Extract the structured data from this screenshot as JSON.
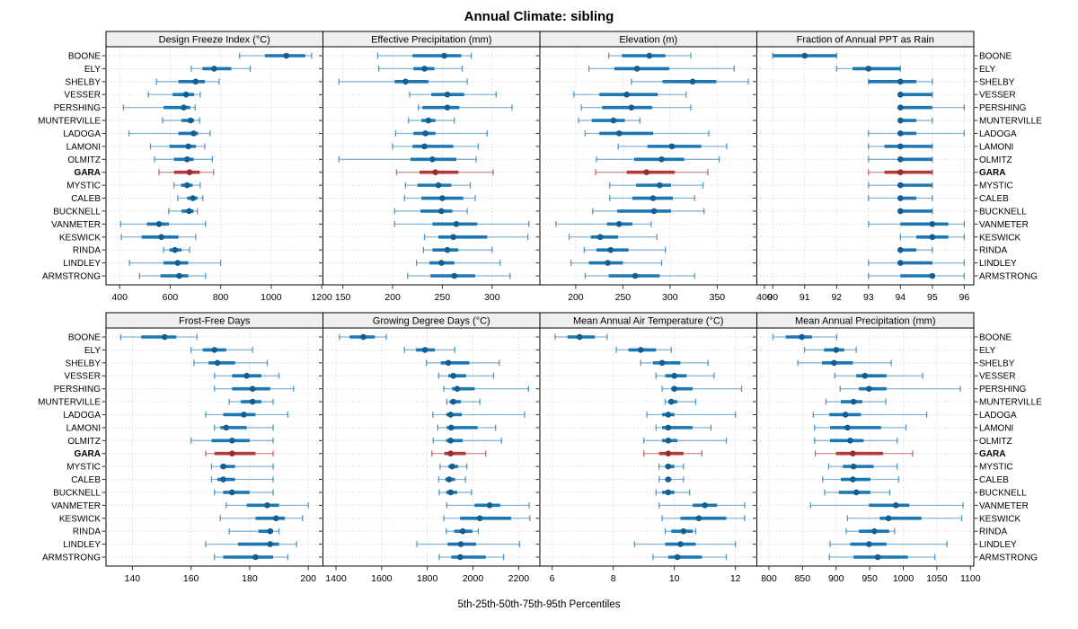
{
  "title": "Annual Climate: sibling",
  "caption": "5th-25th-50th-75th-95th Percentiles",
  "chart_data": {
    "type": "trellis-dotplot-percentiles",
    "percentiles": [
      5,
      25,
      50,
      75,
      95
    ],
    "legend_position": "none",
    "grid": "dotted",
    "stations": [
      "BOONE",
      "ELY",
      "SHELBY",
      "VESSER",
      "PERSHING",
      "MUNTERVILLE",
      "LADOGA",
      "LAMONI",
      "OLMITZ",
      "GARA",
      "MYSTIC",
      "CALEB",
      "BUCKNELL",
      "VANMETER",
      "KESWICK",
      "RINDA",
      "LINDLEY",
      "ARMSTRONG"
    ],
    "highlight_station": "GARA",
    "colors": {
      "series": "#1c78b5",
      "series_dot": "#115e93",
      "highlight": "#b5383c",
      "highlight_dot": "#992b2f",
      "gridline": "#c9c9c9",
      "strip_bg": "#efefef",
      "panel_border": "#000000",
      "text": "#000000",
      "background": "#ffffff"
    },
    "panels": [
      {
        "title": "Design Freeze Index (°C)",
        "xlim": [
          346,
          1205
        ],
        "ticks": [
          400,
          600,
          800,
          1000,
          1200
        ],
        "values": [
          [
            875,
            975,
            1060,
            1135,
            1160
          ],
          [
            684,
            728,
            774,
            842,
            917
          ],
          [
            546,
            633,
            701,
            738,
            794
          ],
          [
            514,
            610,
            663,
            695,
            719
          ],
          [
            415,
            574,
            654,
            679,
            699
          ],
          [
            570,
            645,
            681,
            695,
            717
          ],
          [
            437,
            633,
            693,
            711,
            758
          ],
          [
            522,
            597,
            672,
            702,
            737
          ],
          [
            538,
            615,
            667,
            693,
            767
          ],
          [
            556,
            615,
            677,
            717,
            772
          ],
          [
            615,
            643,
            667,
            689,
            719
          ],
          [
            630,
            667,
            690,
            708,
            729
          ],
          [
            594,
            645,
            675,
            693,
            708
          ],
          [
            404,
            508,
            556,
            595,
            740
          ],
          [
            407,
            487,
            565,
            633,
            701
          ],
          [
            574,
            597,
            619,
            645,
            677
          ],
          [
            439,
            574,
            630,
            672,
            800
          ],
          [
            479,
            562,
            636,
            672,
            740
          ]
        ]
      },
      {
        "title": "Effective Precipitation (mm)",
        "xlim": [
          130,
          348
        ],
        "ticks": [
          150,
          200,
          250,
          300
        ],
        "values": [
          [
            185,
            220,
            252,
            269,
            279
          ],
          [
            186,
            221,
            232,
            242,
            270
          ],
          [
            146,
            202,
            213,
            236,
            275
          ],
          [
            217,
            239,
            255,
            272,
            304
          ],
          [
            226,
            230,
            255,
            267,
            320
          ],
          [
            216,
            229,
            236,
            243,
            262
          ],
          [
            203,
            221,
            233,
            243,
            295
          ],
          [
            200,
            220,
            232,
            261,
            286
          ],
          [
            146,
            218,
            240,
            264,
            284
          ],
          [
            204,
            227,
            243,
            266,
            301
          ],
          [
            213,
            225,
            246,
            259,
            278
          ],
          [
            212,
            229,
            250,
            271,
            283
          ],
          [
            202,
            228,
            249,
            260,
            275
          ],
          [
            202,
            240,
            264,
            285,
            337
          ],
          [
            232,
            246,
            261,
            295,
            336
          ],
          [
            231,
            240,
            255,
            266,
            300
          ],
          [
            224,
            237,
            249,
            262,
            308
          ],
          [
            215,
            238,
            262,
            283,
            318
          ]
        ]
      },
      {
        "title": "Elevation (m)",
        "xlim": [
          162,
          392
        ],
        "ticks": [
          200,
          250,
          300,
          350,
          400
        ],
        "values": [
          [
            235,
            249,
            278,
            295,
            322
          ],
          [
            214,
            241,
            265,
            299,
            368
          ],
          [
            259,
            292,
            324,
            349,
            383
          ],
          [
            198,
            225,
            254,
            287,
            317
          ],
          [
            206,
            228,
            259,
            281,
            322
          ],
          [
            203,
            217,
            240,
            252,
            268
          ],
          [
            210,
            225,
            246,
            282,
            341
          ],
          [
            245,
            276,
            302,
            333,
            360
          ],
          [
            222,
            262,
            291,
            315,
            352
          ],
          [
            221,
            254,
            275,
            305,
            340
          ],
          [
            236,
            264,
            289,
            301,
            335
          ],
          [
            236,
            260,
            282,
            303,
            326
          ],
          [
            218,
            244,
            283,
            301,
            336
          ],
          [
            179,
            233,
            246,
            260,
            280
          ],
          [
            193,
            216,
            226,
            245,
            286
          ],
          [
            209,
            222,
            237,
            256,
            295
          ],
          [
            195,
            214,
            234,
            250,
            291
          ],
          [
            210,
            235,
            263,
            289,
            326
          ]
        ]
      },
      {
        "title": "Fraction of Annual PPT as Rain",
        "xlim": [
          89.5,
          96.3
        ],
        "ticks": [
          90,
          91,
          92,
          93,
          94,
          95,
          96
        ],
        "values": [
          [
            90,
            90,
            91,
            92,
            92
          ],
          [
            92,
            92.5,
            93,
            94,
            94
          ],
          [
            93,
            93,
            94,
            94.5,
            95
          ],
          [
            94,
            94,
            94,
            95,
            95
          ],
          [
            94,
            94,
            94,
            95,
            96
          ],
          [
            94,
            94,
            94,
            94.5,
            95
          ],
          [
            93,
            94,
            94,
            94.5,
            96
          ],
          [
            93,
            93.5,
            94,
            95,
            95
          ],
          [
            93,
            94,
            94,
            95,
            95
          ],
          [
            93,
            93.5,
            94,
            95,
            95
          ],
          [
            93,
            94,
            94,
            95,
            95
          ],
          [
            93,
            94,
            94,
            94.5,
            95
          ],
          [
            94,
            94,
            94,
            95,
            95
          ],
          [
            93,
            94,
            95,
            95.5,
            96
          ],
          [
            94,
            94.5,
            95,
            95.5,
            96
          ],
          [
            94,
            94,
            94,
            94.5,
            95
          ],
          [
            93,
            94,
            94,
            95,
            96
          ],
          [
            93,
            94,
            95,
            95,
            96
          ]
        ]
      },
      {
        "title": "Frost-Free Days",
        "xlim": [
          131,
          205
        ],
        "ticks": [
          140,
          160,
          180,
          200
        ],
        "values": [
          [
            136,
            143,
            151,
            155,
            162
          ],
          [
            160,
            164,
            168,
            172,
            181
          ],
          [
            161,
            166,
            169,
            175,
            186
          ],
          [
            168,
            174,
            179,
            184,
            190
          ],
          [
            168,
            174,
            181,
            187,
            195
          ],
          [
            173,
            177,
            181,
            184,
            188
          ],
          [
            165,
            171,
            178,
            182,
            193
          ],
          [
            168,
            170,
            172,
            179,
            188
          ],
          [
            160,
            167,
            174,
            180,
            188
          ],
          [
            165,
            168,
            174,
            182,
            188
          ],
          [
            167,
            170,
            171,
            175,
            188
          ],
          [
            167,
            169,
            171,
            175,
            188
          ],
          [
            168,
            171,
            174,
            180,
            188
          ],
          [
            172,
            179,
            186,
            190,
            200
          ],
          [
            170,
            182,
            189,
            192,
            198
          ],
          [
            173,
            183,
            187,
            188,
            190
          ],
          [
            165,
            176,
            187,
            190,
            196
          ],
          [
            168,
            171,
            182,
            188,
            193
          ]
        ]
      },
      {
        "title": "Growing Degree Days (°C)",
        "xlim": [
          1343,
          2293
        ],
        "ticks": [
          1400,
          1600,
          1800,
          2000,
          2200
        ],
        "values": [
          [
            1415,
            1460,
            1520,
            1570,
            1620
          ],
          [
            1700,
            1750,
            1790,
            1833,
            1920
          ],
          [
            1796,
            1859,
            1892,
            1984,
            2115
          ],
          [
            1850,
            1892,
            1914,
            1970,
            2090
          ],
          [
            1872,
            1908,
            1931,
            2007,
            2243
          ],
          [
            1885,
            1898,
            1914,
            1947,
            2030
          ],
          [
            1824,
            1883,
            1902,
            1951,
            2226
          ],
          [
            1846,
            1885,
            1905,
            2020,
            2099
          ],
          [
            1826,
            1883,
            1902,
            1955,
            2125
          ],
          [
            1820,
            1875,
            1902,
            1968,
            2056
          ],
          [
            1856,
            1892,
            1909,
            1935,
            1973
          ],
          [
            1850,
            1879,
            1896,
            1921,
            1967
          ],
          [
            1852,
            1883,
            1902,
            1931,
            1993
          ],
          [
            1885,
            2007,
            2073,
            2119,
            2246
          ],
          [
            1872,
            1944,
            2030,
            2167,
            2249
          ],
          [
            1883,
            1918,
            1955,
            1997,
            2023
          ],
          [
            1754,
            1889,
            1947,
            2014,
            2204
          ],
          [
            1852,
            1905,
            1944,
            2056,
            2134
          ]
        ]
      },
      {
        "title": "Mean Annual Air Temperature (°C)",
        "xlim": [
          5.6,
          12.7
        ],
        "ticks": [
          6,
          8,
          10,
          12
        ],
        "values": [
          [
            6.1,
            6.5,
            6.9,
            7.4,
            7.8
          ],
          [
            8.1,
            8.5,
            8.9,
            9.4,
            9.9
          ],
          [
            8.9,
            9.3,
            9.6,
            10.2,
            11.1
          ],
          [
            9.4,
            9.7,
            10.0,
            10.4,
            11.3
          ],
          [
            9.6,
            9.9,
            10.0,
            10.6,
            12.2
          ],
          [
            9.7,
            9.8,
            9.9,
            10.1,
            10.7
          ],
          [
            9.1,
            9.6,
            9.8,
            10.0,
            12.0
          ],
          [
            9.4,
            9.6,
            9.8,
            10.6,
            11.2
          ],
          [
            9.0,
            9.6,
            9.8,
            10.1,
            11.7
          ],
          [
            9.0,
            9.5,
            9.8,
            10.3,
            10.9
          ],
          [
            9.5,
            9.7,
            9.8,
            10.0,
            10.3
          ],
          [
            9.5,
            9.7,
            9.8,
            9.9,
            10.3
          ],
          [
            9.4,
            9.6,
            9.8,
            10.0,
            10.5
          ],
          [
            9.5,
            10.6,
            11.0,
            11.4,
            12.3
          ],
          [
            9.6,
            10.2,
            10.8,
            11.7,
            12.3
          ],
          [
            9.7,
            9.9,
            10.3,
            10.6,
            10.7
          ],
          [
            8.7,
            9.7,
            10.2,
            10.7,
            12.0
          ],
          [
            9.3,
            9.8,
            10.1,
            10.9,
            11.7
          ]
        ]
      },
      {
        "title": "Mean Annual Precipitation (mm)",
        "xlim": [
          782,
          1105
        ],
        "ticks": [
          800,
          850,
          900,
          950,
          1000,
          1050,
          1100
        ],
        "values": [
          [
            806,
            825,
            849,
            864,
            901
          ],
          [
            853,
            882,
            900,
            912,
            930
          ],
          [
            843,
            879,
            897,
            925,
            982
          ],
          [
            898,
            930,
            943,
            975,
            1029
          ],
          [
            906,
            934,
            949,
            975,
            1085
          ],
          [
            885,
            907,
            926,
            939,
            974
          ],
          [
            866,
            890,
            914,
            937,
            1035
          ],
          [
            868,
            891,
            917,
            967,
            1004
          ],
          [
            868,
            891,
            921,
            941,
            991
          ],
          [
            869,
            900,
            925,
            970,
            1014
          ],
          [
            889,
            910,
            926,
            956,
            991
          ],
          [
            880,
            907,
            925,
            951,
            993
          ],
          [
            883,
            904,
            930,
            951,
            980
          ],
          [
            862,
            949,
            989,
            1009,
            1089
          ],
          [
            917,
            965,
            978,
            1027,
            1087
          ],
          [
            915,
            934,
            957,
            979,
            987
          ],
          [
            891,
            921,
            949,
            975,
            1065
          ],
          [
            890,
            926,
            962,
            1007,
            1047
          ]
        ]
      }
    ]
  }
}
